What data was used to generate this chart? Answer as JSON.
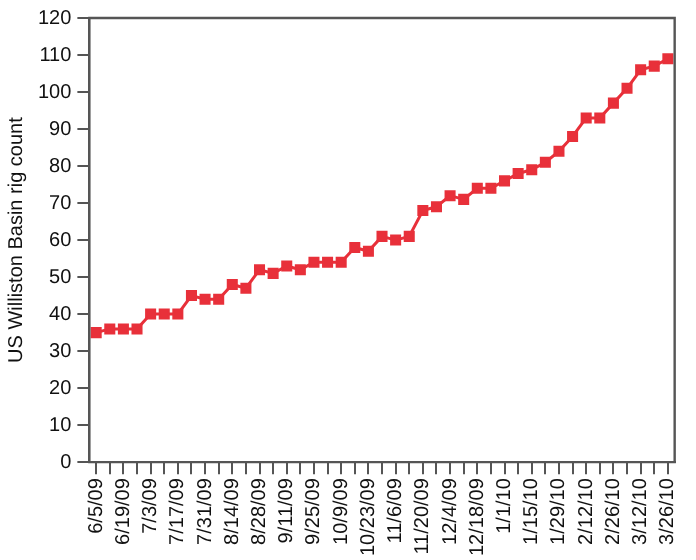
{
  "chart_data": {
    "type": "line",
    "ylabel": "US Williston Basin rig count",
    "categories": [
      "6/5/09",
      null,
      "6/19/09",
      null,
      "7/3/09",
      null,
      "7/17/09",
      null,
      "7/31/09",
      null,
      "8/14/09",
      null,
      "8/28/09",
      null,
      "9/11/09",
      null,
      "9/25/09",
      null,
      "10/9/09",
      null,
      "10/23/09",
      null,
      "11/6/09",
      null,
      "11/20/09",
      null,
      "12/4/09",
      null,
      "12/18/09",
      null,
      "1/1/10",
      null,
      "1/15/10",
      null,
      "1/29/10",
      null,
      "2/12/10",
      null,
      "2/26/10",
      null,
      "3/12/10",
      null,
      "3/26/10"
    ],
    "series": [
      {
        "color": "#e8303a",
        "values": [
          35,
          36,
          36,
          36,
          40,
          40,
          40,
          45,
          44,
          44,
          48,
          47,
          52,
          51,
          53,
          52,
          54,
          54,
          54,
          58,
          57,
          61,
          60,
          61,
          68,
          69,
          72,
          71,
          74,
          74,
          76,
          78,
          79,
          81,
          84,
          88,
          93,
          93,
          97,
          101,
          106,
          107,
          109
        ]
      }
    ],
    "ylim": [
      0,
      120
    ],
    "yticks": [
      0,
      10,
      20,
      30,
      40,
      50,
      60,
      70,
      80,
      90,
      100,
      110,
      120
    ],
    "grid": false,
    "legend": false,
    "marker": "square",
    "line_style": "solid"
  }
}
